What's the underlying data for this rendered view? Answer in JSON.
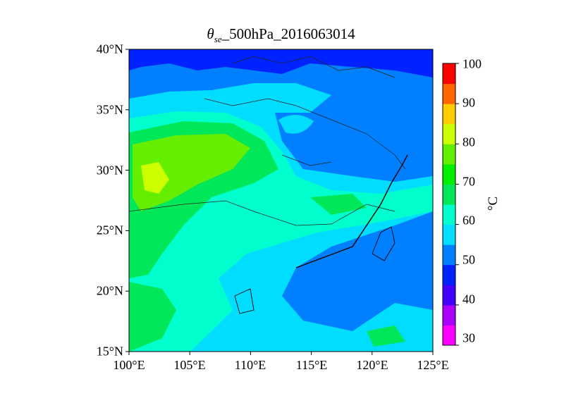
{
  "title": {
    "symbol": "θ",
    "subscript": "se",
    "rest": "_500hPa_2016063014"
  },
  "map": {
    "extent": {
      "lon": [
        100,
        125
      ],
      "lat": [
        15,
        40
      ]
    },
    "x_ticks": [
      "100°E",
      "105°E",
      "110°E",
      "115°E",
      "120°E",
      "125°E"
    ],
    "y_ticks": [
      "40°N",
      "35°N",
      "30°N",
      "25°N",
      "20°N",
      "15°N"
    ]
  },
  "colorbar": {
    "unit": "°C",
    "range": [
      30,
      100
    ],
    "step": 5,
    "ticks": [
      "100",
      "90",
      "80",
      "70",
      "60",
      "50",
      "40",
      "30"
    ],
    "colors": [
      "#ff00ff",
      "#aa00ff",
      "#4400ff",
      "#0022ff",
      "#0080ff",
      "#00ddff",
      "#00ffcc",
      "#00e85a",
      "#00ee00",
      "#66ee00",
      "#ccff00",
      "#ffcc00",
      "#ff6600",
      "#ff0000"
    ]
  }
}
